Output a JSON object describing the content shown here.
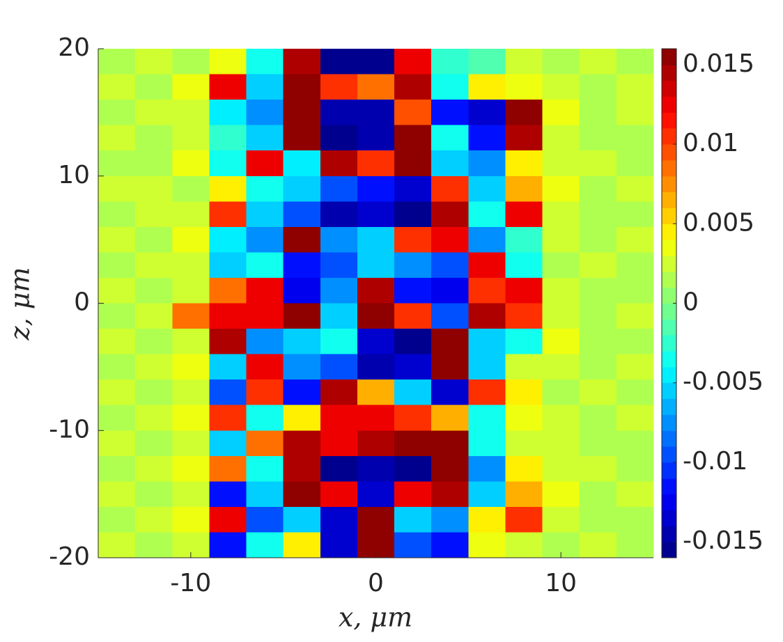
{
  "chart_data": {
    "type": "heatmap",
    "colormap": "jet",
    "colorlevels": 32,
    "xlabel": "x, μm",
    "ylabel": "z, μm",
    "xlim": [
      -15,
      15
    ],
    "ylim": [
      -20,
      20
    ],
    "xticks": [
      -10,
      0,
      10
    ],
    "yticks": [
      -20,
      -10,
      0,
      10,
      20
    ],
    "clim": [
      -0.016,
      0.016
    ],
    "cticks": [
      -0.015,
      -0.01,
      -0.005,
      0,
      0.005,
      0.01,
      0.015
    ],
    "x": [
      -14,
      -12,
      -10,
      -8,
      -6,
      -4,
      -2,
      0,
      2,
      4,
      6,
      8,
      10,
      12,
      14
    ],
    "y": [
      19,
      17,
      15,
      13,
      11,
      9,
      7,
      5,
      3,
      1,
      -1,
      -3,
      -5,
      -7,
      -9,
      -11,
      -13,
      -15,
      -17,
      -19
    ],
    "values": [
      [
        0.001,
        0.002,
        0.001,
        0.003,
        -0.004,
        0.014,
        -0.016,
        -0.016,
        0.012,
        -0.003,
        -0.002,
        0.002,
        0.001,
        0.002,
        0.001
      ],
      [
        0.002,
        0.001,
        0.003,
        0.012,
        -0.006,
        0.015,
        0.01,
        0.008,
        0.014,
        -0.004,
        0.004,
        0.003,
        0.002,
        0.001,
        0.002
      ],
      [
        0.001,
        0.002,
        0.002,
        -0.005,
        -0.008,
        0.016,
        -0.015,
        -0.015,
        0.009,
        -0.012,
        -0.014,
        0.015,
        0.003,
        0.001,
        0.002
      ],
      [
        0.002,
        0.001,
        0.002,
        -0.003,
        -0.006,
        0.015,
        -0.016,
        -0.015,
        0.016,
        -0.004,
        -0.012,
        0.014,
        0.002,
        0.001,
        0.001
      ],
      [
        0.001,
        0.001,
        0.003,
        -0.004,
        0.012,
        -0.005,
        0.014,
        0.01,
        0.016,
        -0.006,
        -0.008,
        0.004,
        0.002,
        0.002,
        0.001
      ],
      [
        0.002,
        0.002,
        0.001,
        0.004,
        -0.004,
        -0.006,
        -0.01,
        -0.012,
        -0.014,
        0.01,
        -0.006,
        0.006,
        0.003,
        0.001,
        0.002
      ],
      [
        0.001,
        0.002,
        0.002,
        0.01,
        -0.006,
        -0.01,
        -0.015,
        -0.014,
        -0.016,
        0.014,
        -0.004,
        0.012,
        0.002,
        0.001,
        0.001
      ],
      [
        0.002,
        0.001,
        0.003,
        -0.005,
        -0.008,
        0.015,
        -0.008,
        -0.006,
        0.01,
        0.013,
        -0.008,
        -0.003,
        0.002,
        0.001,
        0.002
      ],
      [
        0.001,
        0.002,
        0.002,
        -0.006,
        -0.004,
        -0.012,
        -0.01,
        -0.006,
        -0.008,
        -0.01,
        0.012,
        -0.004,
        0.001,
        0.002,
        0.001
      ],
      [
        0.002,
        0.001,
        0.002,
        0.008,
        0.012,
        -0.013,
        -0.008,
        0.014,
        -0.012,
        -0.013,
        0.01,
        0.012,
        0.002,
        0.001,
        0.001
      ],
      [
        0.001,
        0.002,
        0.008,
        0.012,
        0.013,
        0.016,
        -0.006,
        0.015,
        0.01,
        -0.01,
        0.014,
        0.01,
        0.002,
        0.001,
        0.002
      ],
      [
        0.002,
        0.001,
        0.002,
        0.014,
        -0.008,
        -0.006,
        -0.004,
        -0.014,
        -0.016,
        0.016,
        -0.006,
        -0.004,
        0.003,
        0.001,
        0.001
      ],
      [
        0.001,
        0.002,
        0.003,
        -0.006,
        0.012,
        -0.008,
        -0.01,
        -0.015,
        -0.014,
        0.015,
        -0.006,
        0.002,
        0.002,
        0.001,
        0.002
      ],
      [
        0.002,
        0.001,
        0.002,
        -0.01,
        0.01,
        -0.012,
        0.014,
        0.006,
        -0.006,
        -0.014,
        0.01,
        0.004,
        0.001,
        0.002,
        0.001
      ],
      [
        0.001,
        0.002,
        0.003,
        0.01,
        -0.004,
        0.004,
        0.012,
        0.013,
        0.01,
        0.006,
        -0.004,
        0.003,
        0.002,
        0.001,
        0.002
      ],
      [
        0.002,
        0.001,
        0.002,
        -0.006,
        0.008,
        0.014,
        0.012,
        0.014,
        0.016,
        0.015,
        -0.004,
        0.002,
        0.002,
        0.001,
        0.001
      ],
      [
        0.001,
        0.002,
        0.003,
        0.008,
        -0.004,
        0.014,
        -0.016,
        -0.015,
        -0.016,
        0.016,
        -0.008,
        0.004,
        0.002,
        0.002,
        0.001
      ],
      [
        0.002,
        0.001,
        0.002,
        -0.012,
        -0.006,
        0.015,
        0.012,
        -0.014,
        0.012,
        0.014,
        -0.006,
        0.006,
        0.003,
        0.001,
        0.002
      ],
      [
        0.001,
        0.002,
        0.003,
        0.012,
        -0.01,
        -0.006,
        -0.014,
        0.016,
        -0.006,
        -0.008,
        0.004,
        0.01,
        0.002,
        0.001,
        0.001
      ],
      [
        0.002,
        0.001,
        0.002,
        -0.012,
        -0.004,
        0.004,
        -0.014,
        0.015,
        -0.01,
        -0.012,
        0.003,
        0.002,
        0.001,
        0.002,
        0.001
      ]
    ]
  }
}
